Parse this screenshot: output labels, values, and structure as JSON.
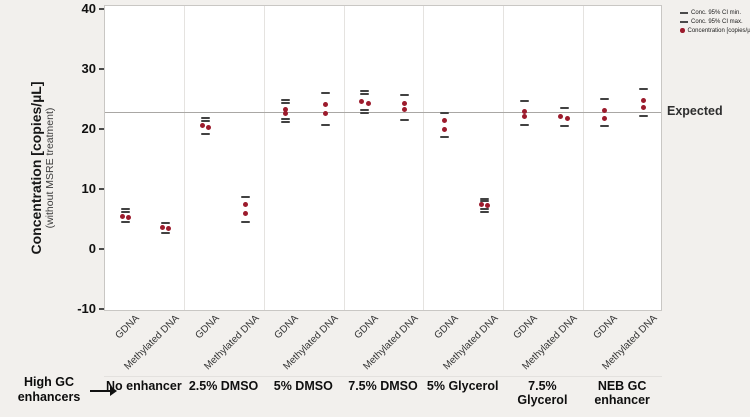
{
  "colors": {
    "marker": "#9c1b2c",
    "ci_dash": "#424242",
    "expected_line": "#a9a7a4",
    "background": "#f2f0ed",
    "plot_background": "#ffffff"
  },
  "figure": {
    "expected_label": "Expected",
    "high_gc_line1": "High GC",
    "high_gc_line2": "enhancers",
    "arrow_icon": "right-arrow"
  },
  "chart_data": {
    "type": "scatter",
    "title": "",
    "ylabel": "Concentration [copies/µL]",
    "ylabel_sub": "(without MSRE treatment)",
    "ylim": [
      -10,
      40
    ],
    "yticks": [
      40,
      30,
      20,
      10,
      0,
      -10
    ],
    "grid": "vertical panel dividers only",
    "legend_position": "top-right outside",
    "expected_value": 23,
    "categories": [
      "GDNA",
      "Methylated DNA"
    ],
    "legend": [
      {
        "icon": "dash",
        "color": "#4a4a4a",
        "label": "Conc. 95% CI min."
      },
      {
        "icon": "dash",
        "color": "#4a4a4a",
        "label": "Conc. 95% CI max."
      },
      {
        "icon": "dot",
        "color": "#9c1b2c",
        "label": "Concentration [copies/µL]"
      }
    ],
    "panels": [
      {
        "label": "No enhancer",
        "groups": [
          {
            "name": "GDNA",
            "values": [
              5.6,
              5.4
            ],
            "arrangement": "side",
            "ci_max": [
              6.8,
              6.4
            ],
            "ci_min": [
              4.6
            ]
          },
          {
            "name": "Methylated DNA",
            "values": [
              3.8,
              3.6
            ],
            "arrangement": "side",
            "ci_max": [
              4.5
            ],
            "ci_min": [
              2.8
            ]
          }
        ]
      },
      {
        "label": "2.5% DMSO",
        "groups": [
          {
            "name": "GDNA",
            "values": [
              20.7,
              20.5
            ],
            "arrangement": "side",
            "ci_max": [
              22.0,
              21.5
            ],
            "ci_min": [
              19.3
            ]
          },
          {
            "name": "Methylated DNA",
            "values": [
              7.6,
              6.1
            ],
            "arrangement": "stacked",
            "ci_max": [
              8.8
            ],
            "ci_min": [
              4.6
            ]
          }
        ]
      },
      {
        "label": "5% DMSO",
        "groups": [
          {
            "name": "GDNA",
            "values": [
              23.5,
              22.8
            ],
            "arrangement": "stacked",
            "ci_max": [
              25.0,
              24.5
            ],
            "ci_min": [
              21.8,
              21.3
            ]
          },
          {
            "name": "Methylated DNA",
            "values": [
              24.2,
              22.7
            ],
            "arrangement": "stacked",
            "ci_max": [
              26.2
            ],
            "ci_min": [
              20.8
            ]
          }
        ]
      },
      {
        "label": "7.5% DMSO",
        "groups": [
          {
            "name": "GDNA",
            "values": [
              24.7,
              24.5
            ],
            "arrangement": "side",
            "ci_max": [
              26.5,
              26.0
            ],
            "ci_min": [
              23.3,
              22.9
            ]
          },
          {
            "name": "Methylated DNA",
            "values": [
              24.4,
              23.4
            ],
            "arrangement": "stacked",
            "ci_max": [
              25.8
            ],
            "ci_min": [
              21.6
            ]
          }
        ]
      },
      {
        "label": "5% Glycerol",
        "groups": [
          {
            "name": "GDNA",
            "values": [
              21.6,
              20.1
            ],
            "arrangement": "stacked",
            "ci_max": [
              22.8
            ],
            "ci_min": [
              18.9
            ]
          },
          {
            "name": "Methylated DNA",
            "values": [
              7.6,
              7.4
            ],
            "arrangement": "side",
            "ci_max": [
              8.5,
              8.1
            ],
            "ci_min": [
              6.8,
              6.4
            ]
          }
        ]
      },
      {
        "label": "7.5% Glycerol",
        "groups": [
          {
            "name": "GDNA",
            "values": [
              23.1,
              22.3
            ],
            "arrangement": "stacked",
            "ci_max": [
              24.8
            ],
            "ci_min": [
              20.9
            ]
          },
          {
            "name": "Methylated DNA",
            "values": [
              22.2,
              22.0
            ],
            "arrangement": "side",
            "ci_max": [
              23.6
            ],
            "ci_min": [
              20.6
            ]
          }
        ]
      },
      {
        "label": "NEB GC enhancer",
        "groups": [
          {
            "name": "GDNA",
            "values": [
              23.3,
              21.9
            ],
            "arrangement": "stacked",
            "ci_max": [
              25.1
            ],
            "ci_min": [
              20.6
            ]
          },
          {
            "name": "Methylated DNA",
            "values": [
              25.0,
              23.8
            ],
            "arrangement": "stacked",
            "ci_max": [
              26.9
            ],
            "ci_min": [
              22.3
            ]
          }
        ]
      }
    ]
  }
}
